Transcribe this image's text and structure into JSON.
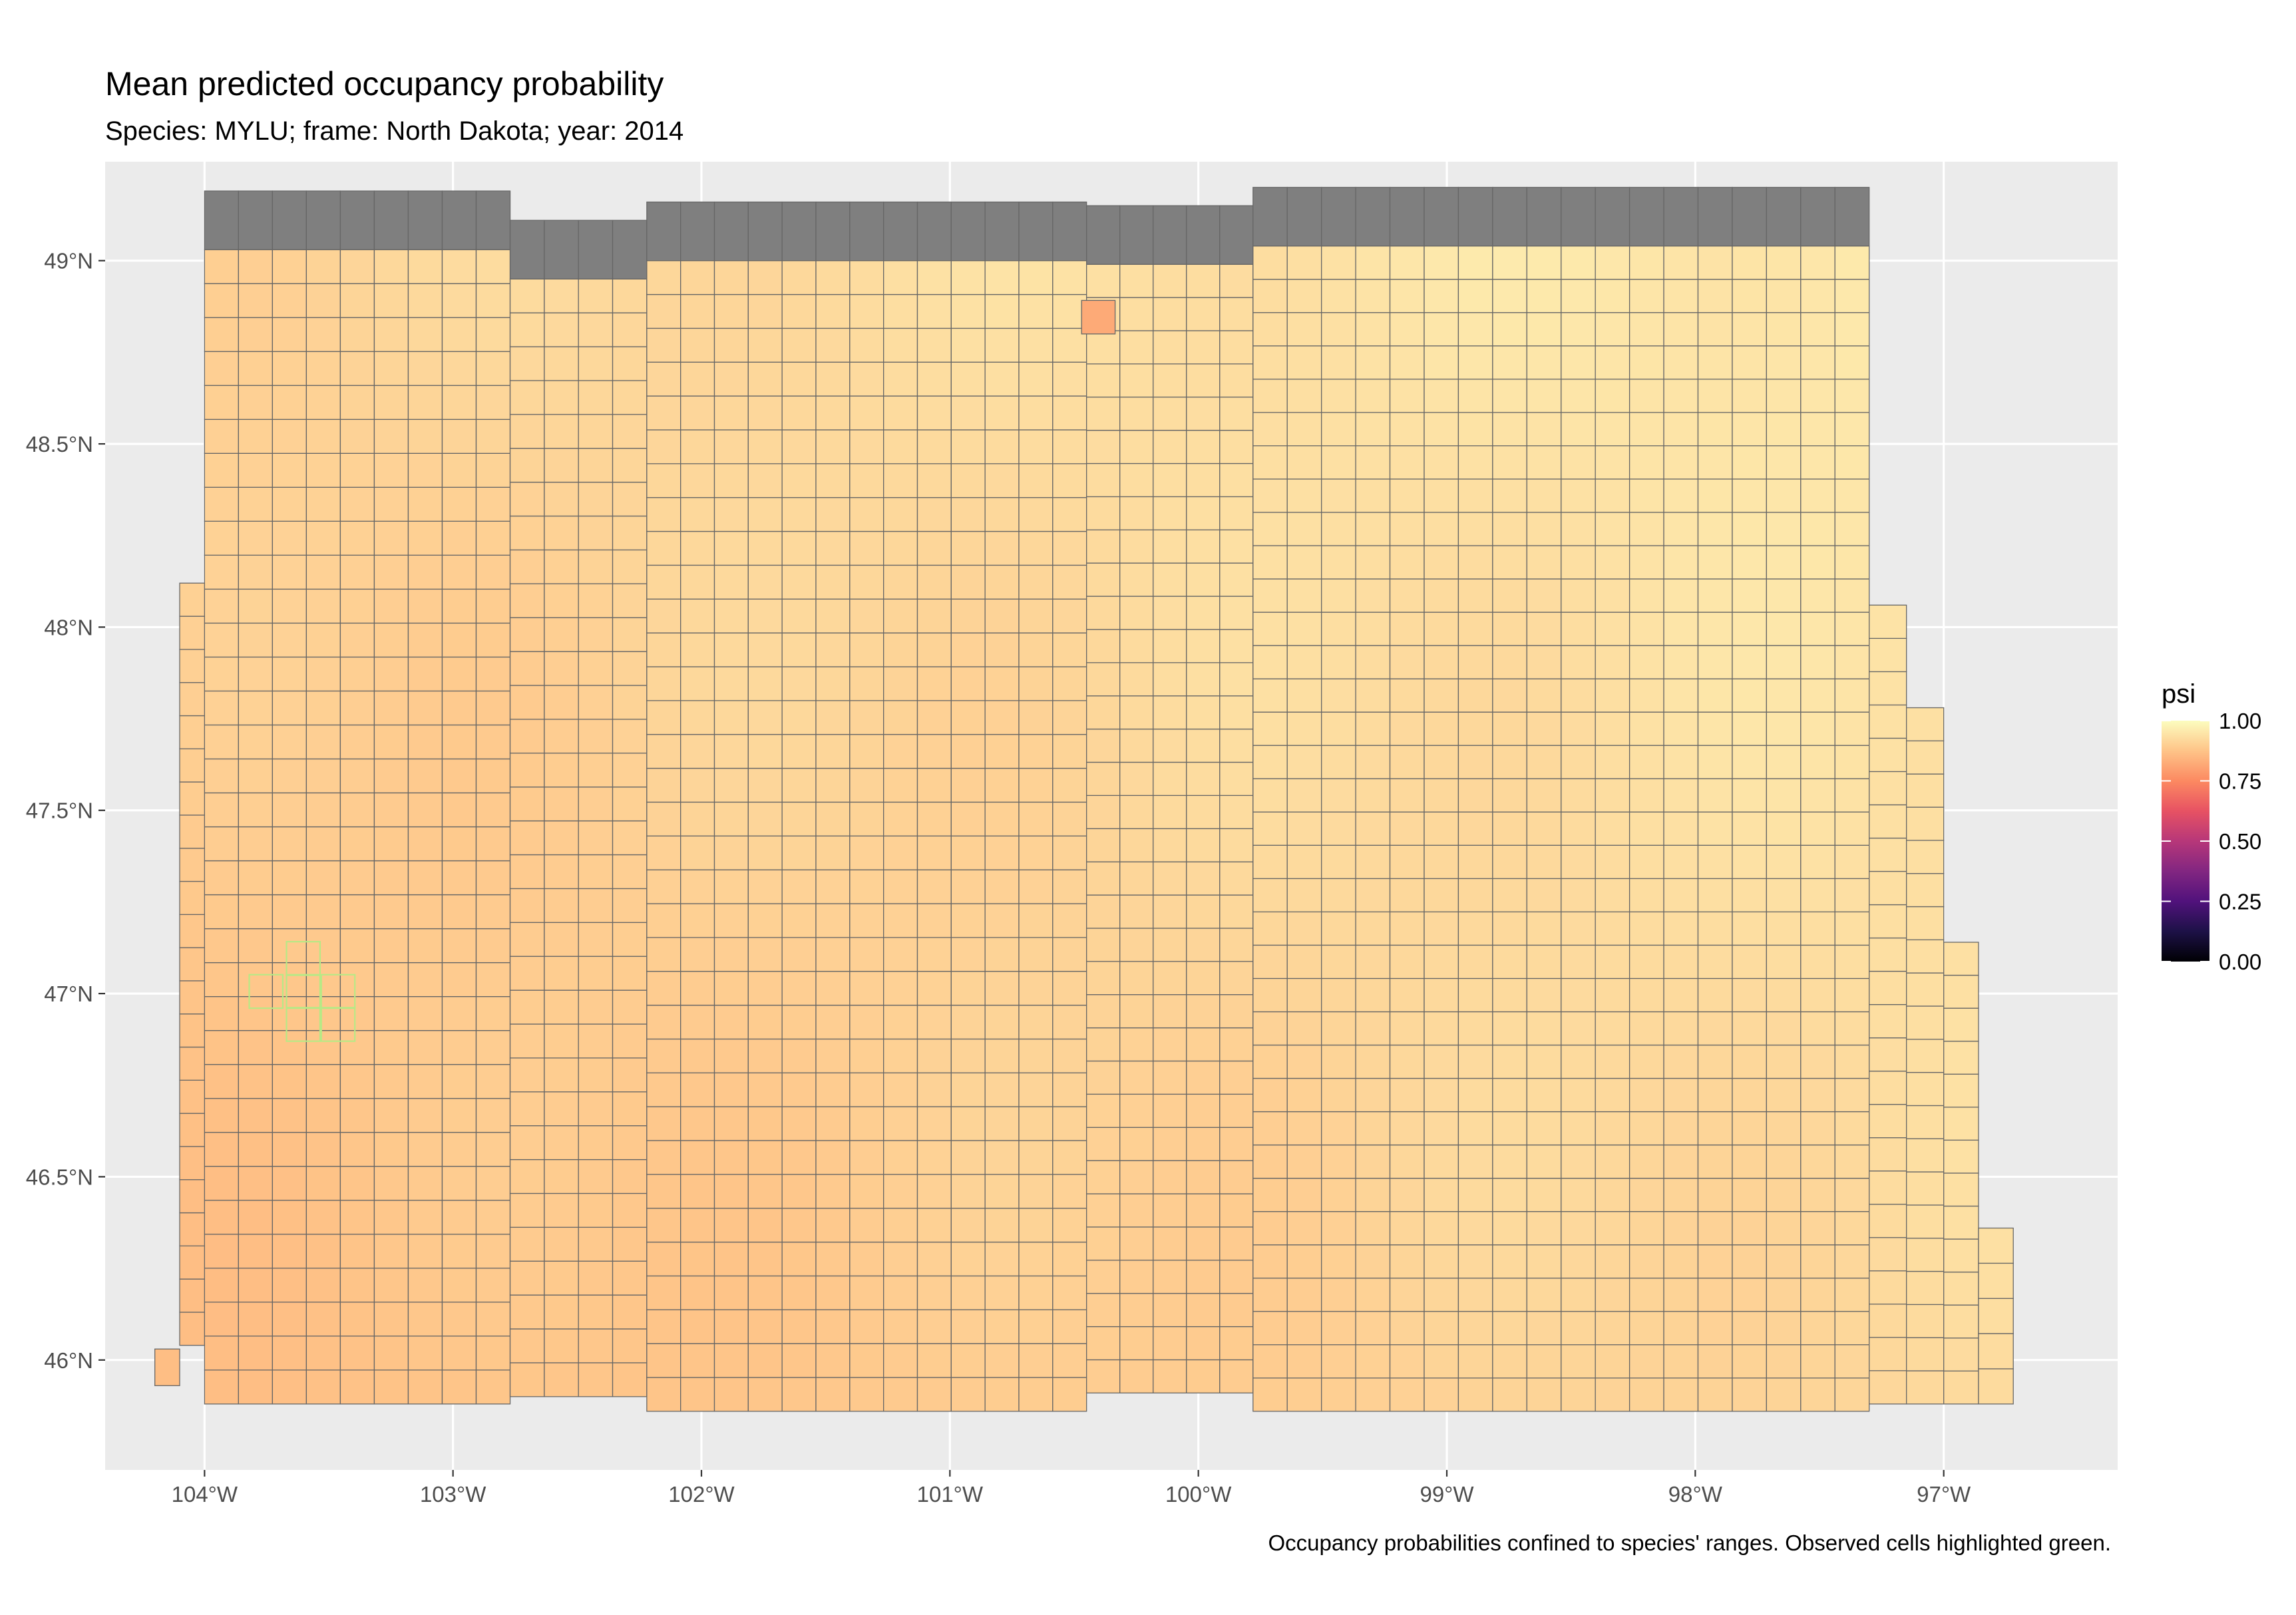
{
  "title": "Mean predicted occupancy probability",
  "subtitle": "Species: MYLU; frame: North Dakota; year: 2014",
  "caption": "Occupancy probabilities confined to species' ranges. Observed cells highlighted green.",
  "colors": {
    "panel_background": "#ebebeb",
    "gridline": "#ffffff",
    "outside_range_cell": "#7f7f7f",
    "cell_border": "#666666",
    "observed_cell_border": "#b8e986",
    "palette": "magma"
  },
  "chart_data": {
    "type": "heatmap",
    "geometry": "map-grid",
    "title": "Mean predicted occupancy probability",
    "subtitle": "Species: MYLU; frame: North Dakota; year: 2014",
    "fill_variable": "psi",
    "xlim": [
      -104.4,
      -96.3
    ],
    "ylim": [
      45.7,
      49.27
    ],
    "x_ticks": [
      -104,
      -103,
      -102,
      -101,
      -100,
      -99,
      -98,
      -97
    ],
    "x_tick_labels": [
      "104°W",
      "103°W",
      "102°W",
      "101°W",
      "100°W",
      "99°W",
      "98°W",
      "97°W"
    ],
    "y_ticks": [
      46,
      46.5,
      47,
      47.5,
      48,
      48.5,
      49
    ],
    "y_tick_labels": [
      "46°N",
      "46.5°N",
      "47°N",
      "47.5°N",
      "48°N",
      "48.5°N",
      "49°N"
    ],
    "grid": true,
    "cell_size_deg": {
      "dlon": 0.135,
      "dlat": 0.0915
    },
    "top_row_outside_range": true,
    "footprint": [
      {
        "from_lon": -104.0,
        "to_lon": -102.77,
        "north_lat": 49.03,
        "south_lat": 45.88
      },
      {
        "from_lon": -102.77,
        "to_lon": -102.22,
        "north_lat": 48.95,
        "south_lat": 45.9
      },
      {
        "from_lon": -102.22,
        "to_lon": -100.45,
        "north_lat": 49.0,
        "south_lat": 45.86
      },
      {
        "from_lon": -100.45,
        "to_lon": -99.78,
        "north_lat": 48.99,
        "south_lat": 45.91
      },
      {
        "from_lon": -99.78,
        "to_lon": -97.3,
        "north_lat": 49.04,
        "south_lat": 45.86
      },
      {
        "from_lon": -97.3,
        "to_lon": -97.15,
        "north_lat": 48.06,
        "south_lat": 45.88
      },
      {
        "from_lon": -97.15,
        "to_lon": -97.0,
        "north_lat": 47.78,
        "south_lat": 45.88
      },
      {
        "from_lon": -97.0,
        "to_lon": -96.86,
        "north_lat": 47.14,
        "south_lat": 45.88
      },
      {
        "from_lon": -96.86,
        "to_lon": -96.72,
        "north_lat": 46.36,
        "south_lat": 45.88
      }
    ],
    "west_extensions": [
      {
        "lon": -104.1,
        "north_lat": 48.12,
        "south_lat": 46.04
      },
      {
        "lon": -104.2,
        "north_lat": 46.03,
        "south_lat": 45.93
      }
    ],
    "psi_summary": {
      "north_east": 0.97,
      "south_west": 0.86,
      "min": 0.82,
      "max": 0.98
    },
    "highlight_cell": {
      "lon": -100.47,
      "lat": 48.8,
      "psi": 0.82
    },
    "observed_cells": [
      {
        "lon": -103.67,
        "lat": 47.05
      },
      {
        "lon": -103.82,
        "lat": 46.96
      },
      {
        "lon": -103.67,
        "lat": 46.96
      },
      {
        "lon": -103.53,
        "lat": 46.96
      },
      {
        "lon": -103.67,
        "lat": 46.87
      },
      {
        "lon": -103.53,
        "lat": 46.87
      }
    ],
    "legend": {
      "title": "psi",
      "position": "right",
      "type": "colorbar",
      "range": [
        0,
        1
      ],
      "breaks": [
        0,
        0.25,
        0.5,
        0.75,
        1
      ],
      "labels": [
        "0.00",
        "0.25",
        "0.50",
        "0.75",
        "1.00"
      ]
    }
  }
}
